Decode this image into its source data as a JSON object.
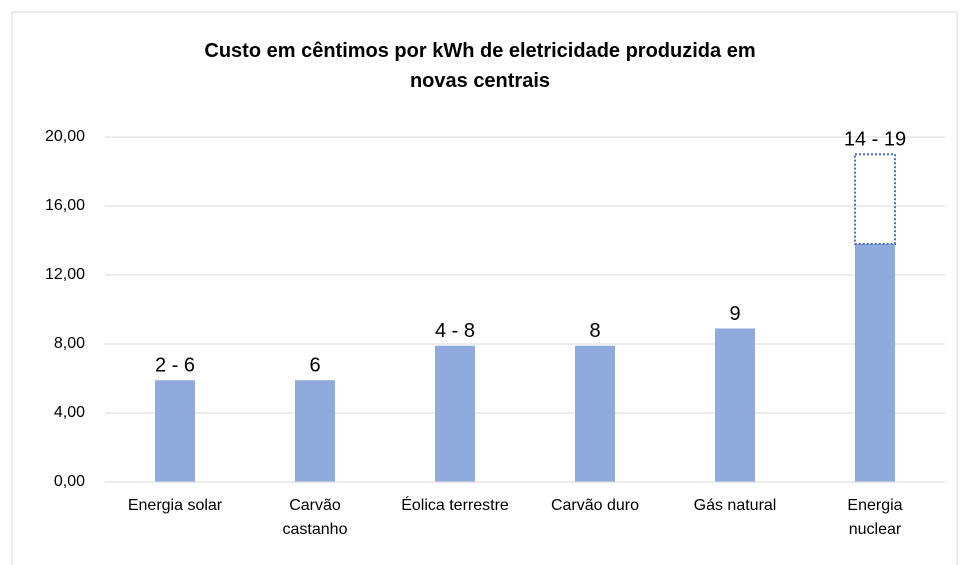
{
  "chart_data": {
    "type": "bar",
    "title": "Custo em cêntimos por kWh de eletricidade produzida em novas centrais",
    "categories": [
      "Energia solar",
      "Carvão castanho",
      "Éolica terrestre",
      "Carvão duro",
      "Gás natural",
      "Energia nuclear"
    ],
    "series": [
      {
        "color": "#8faadc",
        "values": [
          5.9,
          5.9,
          7.9,
          7.9,
          8.9,
          13.8
        ],
        "value_labels": [
          "2 - 6",
          "6",
          "4 - 8",
          "8",
          "9",
          "14 - 19"
        ]
      },
      {
        "color": "#4472c4",
        "style": "dotted",
        "values": [
          null,
          null,
          null,
          null,
          null,
          5.2
        ]
      }
    ],
    "ylim": [
      0,
      20
    ],
    "yticks": [
      {
        "value": 0,
        "label": "0,00"
      },
      {
        "value": 4,
        "label": "4,00"
      },
      {
        "value": 8,
        "label": "8,00"
      },
      {
        "value": 12,
        "label": "12,00"
      },
      {
        "value": 16,
        "label": "16,00"
      },
      {
        "value": 20,
        "label": "20,00"
      }
    ],
    "grid": true
  }
}
